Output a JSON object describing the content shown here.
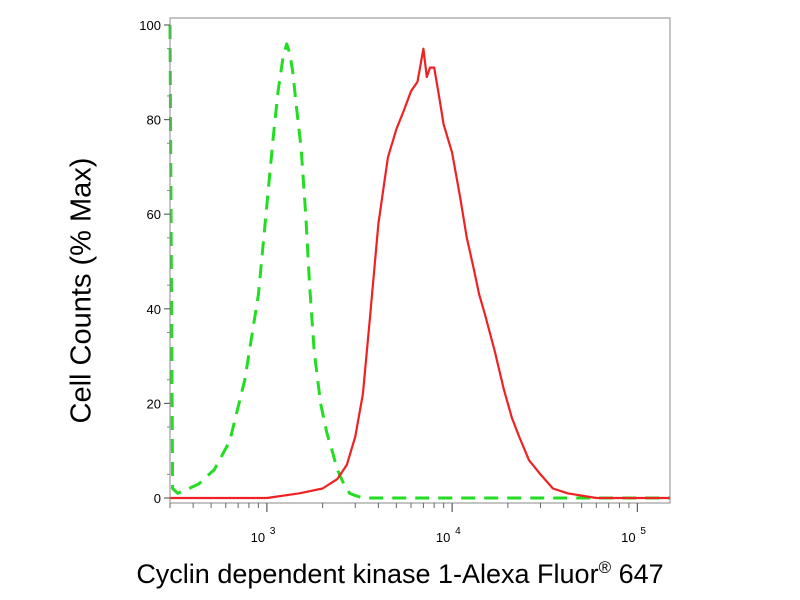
{
  "chart_data": {
    "type": "line",
    "xlabel": "Cyclin dependent kinase 1-Alexa Fluor",
    "xlabel_mark": "®",
    "xlabel_suffix": " 647",
    "ylabel": "Cell Counts (% Max)",
    "x_scale": "log",
    "xlim": [
      300,
      150000
    ],
    "ylim": [
      0,
      100
    ],
    "grid": false,
    "y_ticks": [
      0,
      20,
      40,
      60,
      80,
      100
    ],
    "y_tick_labels": [
      "0",
      "20",
      "40",
      "60",
      "80",
      "100"
    ],
    "x_ticks": [
      1000,
      10000,
      100000
    ],
    "x_tick_labels": [
      {
        "base": "10",
        "exp": "3"
      },
      {
        "base": "10",
        "exp": "4"
      },
      {
        "base": "10",
        "exp": "5"
      }
    ],
    "series": [
      {
        "color": "#22dd22",
        "style": "dashed",
        "x": [
          300,
          310,
          330,
          380,
          430,
          520,
          630,
          760,
          900,
          1000,
          1080,
          1150,
          1220,
          1280,
          1330,
          1380,
          1450,
          1530,
          1620,
          1700,
          1800,
          1950,
          2100,
          2250,
          2400,
          2600,
          2800,
          3000,
          3300,
          4000,
          8000,
          20000,
          60000,
          150000
        ],
        "y": [
          100,
          2,
          1,
          2,
          3,
          6,
          12,
          25,
          43,
          62,
          76,
          86,
          93,
          96,
          94,
          90,
          82,
          74,
          60,
          45,
          31,
          20,
          14,
          10,
          6,
          3,
          1,
          0.5,
          0,
          0,
          0,
          0,
          0,
          0
        ]
      },
      {
        "color": "#ee2222",
        "style": "solid",
        "x": [
          300,
          1000,
          1500,
          2000,
          2400,
          2700,
          3000,
          3300,
          3600,
          4000,
          4500,
          5000,
          5500,
          6000,
          6500,
          7000,
          7300,
          7600,
          8000,
          8500,
          9000,
          10000,
          11000,
          12000,
          13000,
          14000,
          15000,
          17000,
          19000,
          21000,
          23000,
          26000,
          30000,
          35000,
          42000,
          60000,
          150000
        ],
        "y": [
          0,
          0,
          1,
          2,
          4,
          7,
          13,
          22,
          38,
          58,
          72,
          78,
          82,
          86,
          88,
          95,
          89,
          91,
          91,
          85,
          79,
          73,
          64,
          55,
          49,
          43,
          39,
          31,
          23,
          17,
          13,
          8,
          5,
          2,
          1,
          0,
          0
        ]
      }
    ]
  }
}
